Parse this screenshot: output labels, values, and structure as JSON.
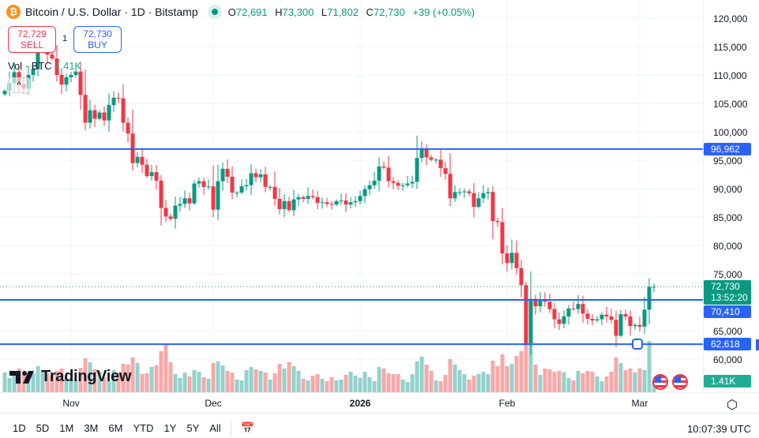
{
  "header": {
    "symbol_icon": "bitcoin-icon",
    "title": "Bitcoin / U.S. Dollar · 1D · Bitstamp",
    "market_status": "open",
    "open_label": "O",
    "open": "72,691",
    "high_label": "H",
    "high": "73,300",
    "low_label": "L",
    "low": "71,802",
    "close_label": "C",
    "close": "72,730",
    "change": "+39 (+0.05%)"
  },
  "trade": {
    "sell_price": "72,729",
    "sell_label": "SELL",
    "buy_price": "72,730",
    "buy_label": "BUY",
    "quantity": "1"
  },
  "volume_legend": {
    "label": "Vol · BTC",
    "value": "1.41K"
  },
  "price_axis": {
    "labels": [
      "120,000",
      "115,000",
      "110,000",
      "105,000",
      "100,000",
      "95,000",
      "90,000",
      "85,000",
      "80,000",
      "75,000",
      "65,000",
      "60,000"
    ],
    "current_price": "72,730",
    "countdown": "13:52:20",
    "volume_tag": "1.41K"
  },
  "horizontal_lines": [
    {
      "label": "96,962",
      "price": 96962
    },
    {
      "label": "70,410",
      "price": 70410
    },
    {
      "label": "62,618",
      "price": 62618
    }
  ],
  "time_axis": {
    "labels": [
      {
        "text": "Nov",
        "day": 14
      },
      {
        "text": "Dec",
        "day": 44
      },
      {
        "text": "2026",
        "day": 75,
        "bold": true
      },
      {
        "text": "Feb",
        "day": 106
      },
      {
        "text": "Mar",
        "day": 134
      }
    ]
  },
  "toolbar": {
    "ranges": [
      "1D",
      "5D",
      "1M",
      "3M",
      "6M",
      "YTD",
      "1Y",
      "5Y",
      "All"
    ],
    "goto_icon": "calendar-goto-icon",
    "clock": "10:07:39 UTC",
    "settings_icon": "gear-icon"
  },
  "branding": "TradingView",
  "colors": {
    "up": "#089981",
    "down": "#f23645",
    "line": "#2962ff",
    "vol_up": "#26a69a",
    "vol_down": "#ef5350"
  },
  "chart_data": {
    "type": "candlestick",
    "price_range": [
      55000,
      123000
    ],
    "first_candle": "Oct 18",
    "closes": [
      107200,
      108600,
      110500,
      108400,
      107600,
      110000,
      111000,
      114500,
      115000,
      113600,
      112900,
      110000,
      108300,
      109600,
      110000,
      110600,
      106500,
      101600,
      103800,
      102300,
      103400,
      102000,
      104700,
      106000,
      105900,
      101600,
      99700,
      94500,
      95600,
      94200,
      92200,
      92900,
      91400,
      86600,
      85100,
      84700,
      87000,
      87300,
      88300,
      87400,
      90900,
      91300,
      90300,
      90400,
      86300,
      91300,
      93500,
      92100,
      89300,
      89300,
      90400,
      90600,
      92700,
      92000,
      92500,
      90300,
      90300,
      88200,
      86400,
      87800,
      86200,
      88100,
      88500,
      88200,
      88700,
      88500,
      87500,
      87600,
      87300,
      87200,
      87800,
      87900,
      87200,
      87600,
      87800,
      88700,
      89900,
      90600,
      91400,
      93900,
      93700,
      91300,
      91000,
      90500,
      90600,
      90900,
      91200,
      95400,
      96900,
      95500,
      95100,
      95100,
      93600,
      92600,
      88300,
      89400,
      89400,
      89500,
      89200,
      86800,
      88300,
      89200,
      89400,
      84300,
      84100,
      78600,
      76900,
      78700,
      76000,
      73000,
      62800,
      70600,
      69300,
      70500,
      70100,
      68800,
      67000,
      66200,
      67500,
      68900,
      68800,
      69700,
      68000,
      67100,
      66800,
      67000,
      67800,
      67500,
      66900,
      64100,
      67900,
      67500,
      65800,
      66000,
      65700,
      68700,
      72691,
      72730
    ],
    "last_candle": {
      "open": 72691,
      "high": 73300,
      "low": 71802,
      "close": 72730
    },
    "volumes": [
      2500,
      1800,
      2600,
      3000,
      2200,
      2000,
      2400,
      3300,
      2600,
      2400,
      2100,
      2700,
      3000,
      1700,
      1600,
      1500,
      3100,
      4300,
      3800,
      2900,
      2600,
      1900,
      1400,
      2800,
      2500,
      3600,
      3500,
      4400,
      3700,
      2300,
      2400,
      3200,
      3400,
      5200,
      6100,
      3800,
      2300,
      1800,
      2500,
      2000,
      2800,
      2600,
      1900,
      1700,
      3700,
      3900,
      3400,
      2700,
      2500,
      1600,
      1500,
      2800,
      3200,
      2900,
      2700,
      2500,
      1600,
      2400,
      3600,
      3000,
      3800,
      3300,
      2700,
      1700,
      1500,
      2100,
      2300,
      1700,
      1400,
      1900,
      1500,
      1600,
      2200,
      2600,
      2100,
      1800,
      2600,
      1900,
      1400,
      3200,
      3000,
      2400,
      2300,
      2300,
      1600,
      1300,
      2300,
      3900,
      4500,
      3500,
      2700,
      1500,
      1400,
      2200,
      4200,
      3500,
      2800,
      2300,
      1600,
      2100,
      2300,
      2600,
      2300,
      4000,
      3300,
      4800,
      3300,
      3600,
      4600,
      5200,
      8000,
      6600,
      3500,
      2200,
      3000,
      2900,
      2600,
      2700,
      2500,
      1800,
      1500,
      2700,
      2400,
      2700,
      2600,
      2000,
      1400,
      2000,
      2600,
      4400,
      3700,
      2800,
      3000,
      2500,
      3000,
      2800,
      6500,
      1410
    ]
  }
}
